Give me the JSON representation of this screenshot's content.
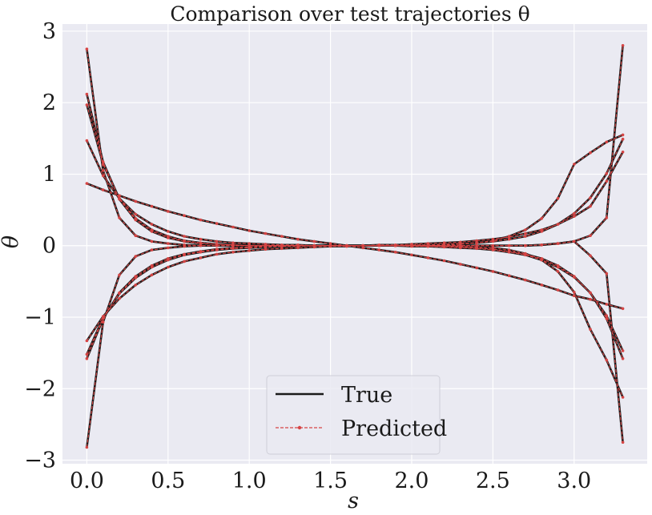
{
  "chart_data": {
    "type": "line",
    "title": "Comparison over test trajectories θ",
    "xlabel": "s",
    "ylabel": "θ",
    "xlim": [
      -0.15,
      3.45
    ],
    "ylim": [
      -3.05,
      3.1
    ],
    "xticks": [
      0.0,
      0.5,
      1.0,
      1.5,
      2.0,
      2.5,
      3.0
    ],
    "xtick_labels": [
      "0.0",
      "0.5",
      "1.0",
      "1.5",
      "2.0",
      "2.5",
      "3.0"
    ],
    "yticks": [
      -3,
      -2,
      -1,
      0,
      1,
      2,
      3
    ],
    "ytick_labels": [
      "−3",
      "−2",
      "−1",
      "0",
      "1",
      "2",
      "3"
    ],
    "grid": true,
    "legend": {
      "placement": "bottom-center",
      "entries": [
        {
          "label": "True",
          "color": "#1a1a1a",
          "style": "solid"
        },
        {
          "label": "Predicted",
          "color": "#d64545",
          "style": "dashed-marker"
        }
      ]
    },
    "x": [
      0.0,
      0.1,
      0.2,
      0.3,
      0.4,
      0.5,
      0.6,
      0.7,
      0.8,
      0.9,
      1.0,
      1.1,
      1.2,
      1.3,
      1.4,
      1.5,
      1.6,
      1.7,
      1.8,
      1.9,
      2.0,
      2.1,
      2.2,
      2.3,
      2.4,
      2.5,
      2.6,
      2.7,
      2.8,
      2.9,
      3.0,
      3.1,
      3.2,
      3.3
    ],
    "series": [
      {
        "values": [
          2.75,
          1.05,
          0.39,
          0.14,
          0.06,
          0.03,
          0.01,
          0.0,
          0.0,
          0.0,
          0.0,
          0.0,
          0.0,
          0.0,
          0.0,
          0.0,
          0.0,
          0.0,
          0.0,
          0.0,
          0.0,
          0.0,
          0.0,
          0.0,
          0.0,
          0.0,
          0.0,
          0.0,
          0.01,
          0.03,
          0.06,
          -0.14,
          -0.39,
          -2.75
        ]
      },
      {
        "values": [
          -2.82,
          -1.07,
          -0.41,
          -0.15,
          -0.06,
          -0.03,
          -0.01,
          0.0,
          0.0,
          0.0,
          0.0,
          0.0,
          0.0,
          0.0,
          0.0,
          0.0,
          0.0,
          0.0,
          0.0,
          0.0,
          0.0,
          0.0,
          0.0,
          0.0,
          0.0,
          0.0,
          0.0,
          0.0,
          0.01,
          0.03,
          0.06,
          0.14,
          0.39,
          2.8
        ]
      },
      {
        "values": [
          2.12,
          1.17,
          0.65,
          0.36,
          0.2,
          0.11,
          0.06,
          0.03,
          0.02,
          0.01,
          0.0,
          0.0,
          0.0,
          0.0,
          0.0,
          0.0,
          0.0,
          0.0,
          0.0,
          0.0,
          0.0,
          0.0,
          0.0,
          -0.01,
          -0.02,
          -0.03,
          -0.06,
          -0.11,
          -0.2,
          -0.36,
          -0.65,
          -1.17,
          -1.6,
          -2.12
        ]
      },
      {
        "values": [
          1.97,
          1.14,
          0.66,
          0.38,
          0.22,
          0.13,
          0.07,
          0.04,
          0.02,
          0.01,
          0.0,
          0.0,
          0.0,
          0.0,
          0.0,
          0.0,
          0.0,
          0.0,
          0.0,
          0.0,
          0.0,
          0.0,
          0.01,
          0.02,
          0.04,
          0.07,
          0.13,
          0.22,
          0.38,
          0.66,
          1.14,
          1.3,
          1.45,
          1.55
        ]
      },
      {
        "values": [
          1.47,
          0.98,
          0.66,
          0.44,
          0.3,
          0.2,
          0.13,
          0.09,
          0.06,
          0.04,
          0.03,
          0.02,
          0.01,
          0.01,
          0.0,
          0.0,
          0.0,
          0.0,
          0.0,
          0.0,
          -0.01,
          -0.01,
          -0.02,
          -0.03,
          -0.04,
          -0.06,
          -0.09,
          -0.13,
          -0.2,
          -0.3,
          -0.44,
          -0.66,
          -0.98,
          -1.47
        ]
      },
      {
        "values": [
          -1.52,
          -1.01,
          -0.67,
          -0.45,
          -0.3,
          -0.2,
          -0.13,
          -0.09,
          -0.06,
          -0.04,
          -0.03,
          -0.02,
          -0.01,
          -0.01,
          0.0,
          0.0,
          0.0,
          0.0,
          0.0,
          0.0,
          0.01,
          0.01,
          0.02,
          0.03,
          0.04,
          0.06,
          0.09,
          0.13,
          0.2,
          0.3,
          0.45,
          0.67,
          1.01,
          1.49
        ]
      },
      {
        "values": [
          -1.33,
          -0.99,
          -0.74,
          -0.55,
          -0.41,
          -0.3,
          -0.22,
          -0.17,
          -0.12,
          -0.09,
          -0.07,
          -0.05,
          -0.04,
          -0.03,
          -0.02,
          -0.01,
          -0.01,
          0.0,
          0.01,
          0.01,
          0.02,
          0.03,
          0.04,
          0.05,
          0.07,
          0.09,
          0.12,
          0.17,
          0.22,
          0.3,
          0.41,
          0.55,
          0.9,
          1.31
        ]
      },
      {
        "values": [
          -1.58,
          -1.02,
          -0.66,
          -0.43,
          -0.28,
          -0.18,
          -0.12,
          -0.08,
          -0.05,
          -0.03,
          -0.02,
          -0.01,
          -0.01,
          0.0,
          0.0,
          0.0,
          0.0,
          0.0,
          0.0,
          0.0,
          0.0,
          -0.01,
          -0.01,
          -0.02,
          -0.03,
          -0.05,
          -0.08,
          -0.12,
          -0.18,
          -0.28,
          -0.43,
          -0.66,
          -1.02,
          -1.58
        ]
      },
      {
        "values": [
          0.87,
          0.78,
          0.7,
          0.62,
          0.55,
          0.48,
          0.42,
          0.36,
          0.31,
          0.26,
          0.21,
          0.17,
          0.13,
          0.09,
          0.06,
          0.03,
          0.0,
          -0.03,
          -0.06,
          -0.09,
          -0.13,
          -0.17,
          -0.21,
          -0.26,
          -0.31,
          -0.36,
          -0.42,
          -0.48,
          -0.55,
          -0.62,
          -0.7,
          -0.75,
          -0.82,
          -0.88
        ]
      }
    ]
  }
}
